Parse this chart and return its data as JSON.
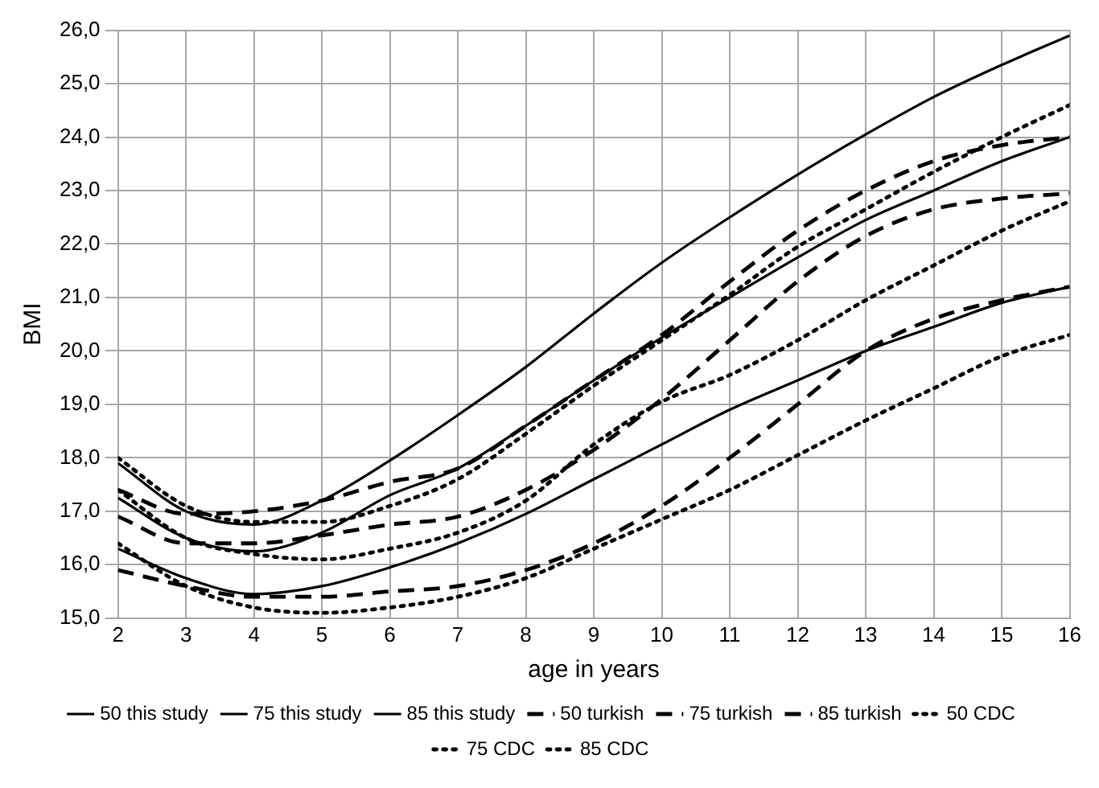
{
  "chart_data": {
    "type": "line",
    "xlabel": "age in years",
    "ylabel": "BMI",
    "x": [
      2,
      3,
      4,
      5,
      6,
      7,
      8,
      9,
      10,
      11,
      12,
      13,
      14,
      15,
      16
    ],
    "xlim": [
      2,
      16
    ],
    "xticks": [
      2,
      3,
      4,
      5,
      6,
      7,
      8,
      9,
      10,
      11,
      12,
      13,
      14,
      15,
      16
    ],
    "ylim": [
      15,
      26
    ],
    "yticks": [
      {
        "value": 15,
        "label": "15,0"
      },
      {
        "value": 16,
        "label": "16,0"
      },
      {
        "value": 17,
        "label": "17,0"
      },
      {
        "value": 18,
        "label": "18,0"
      },
      {
        "value": 19,
        "label": "19,0"
      },
      {
        "value": 20,
        "label": "20,0"
      },
      {
        "value": 21,
        "label": "21,0"
      },
      {
        "value": 22,
        "label": "22,0"
      },
      {
        "value": 23,
        "label": "23,0"
      },
      {
        "value": 24,
        "label": "24,0"
      },
      {
        "value": 25,
        "label": "25,0"
      },
      {
        "value": 26,
        "label": "26,0"
      }
    ],
    "grid": true,
    "legend": "bottom",
    "marker": "none",
    "series": [
      {
        "name": "50 this study",
        "color": "#000000",
        "line_style": "solid",
        "values": [
          16.3,
          15.75,
          15.45,
          15.6,
          15.95,
          16.4,
          16.95,
          17.6,
          18.25,
          18.9,
          19.45,
          20.0,
          20.45,
          20.9,
          21.2
        ]
      },
      {
        "name": "75 this study",
        "color": "#000000",
        "line_style": "solid",
        "values": [
          17.25,
          16.5,
          16.25,
          16.6,
          17.3,
          17.8,
          18.6,
          19.45,
          20.25,
          21.0,
          21.75,
          22.45,
          23.0,
          23.55,
          24.0
        ]
      },
      {
        "name": "85 this study",
        "color": "#000000",
        "line_style": "solid",
        "values": [
          17.9,
          17.0,
          16.75,
          17.2,
          17.95,
          18.8,
          19.7,
          20.7,
          21.65,
          22.5,
          23.3,
          24.05,
          24.75,
          25.35,
          25.9
        ]
      },
      {
        "name": "50 turkish",
        "color": "#000000",
        "line_style": "dashed",
        "values": [
          15.9,
          15.6,
          15.4,
          15.4,
          15.5,
          15.6,
          15.9,
          16.4,
          17.1,
          18.0,
          19.0,
          20.0,
          20.6,
          20.95,
          21.2
        ]
      },
      {
        "name": "75 turkish",
        "color": "#000000",
        "line_style": "dashed",
        "values": [
          16.9,
          16.4,
          16.4,
          16.55,
          16.75,
          16.9,
          17.4,
          18.15,
          19.1,
          20.2,
          21.3,
          22.15,
          22.65,
          22.85,
          22.95
        ]
      },
      {
        "name": "85 turkish",
        "color": "#000000",
        "line_style": "dashed",
        "values": [
          17.4,
          16.95,
          17.0,
          17.2,
          17.55,
          17.8,
          18.6,
          19.45,
          20.3,
          21.3,
          22.25,
          23.0,
          23.55,
          23.85,
          24.0
        ]
      },
      {
        "name": "50 CDC",
        "color": "#000000",
        "line_style": "dotted",
        "values": [
          16.4,
          15.6,
          15.2,
          15.1,
          15.2,
          15.4,
          15.75,
          16.3,
          16.85,
          17.4,
          18.05,
          18.7,
          19.3,
          19.9,
          20.3
        ]
      },
      {
        "name": "75 CDC",
        "color": "#000000",
        "line_style": "dotted",
        "values": [
          17.4,
          16.5,
          16.2,
          16.1,
          16.3,
          16.6,
          17.2,
          18.25,
          19.05,
          19.55,
          20.2,
          20.95,
          21.6,
          22.25,
          22.8
        ]
      },
      {
        "name": "85 CDC",
        "color": "#000000",
        "line_style": "dotted",
        "values": [
          18.0,
          17.1,
          16.8,
          16.8,
          17.1,
          17.6,
          18.45,
          19.35,
          20.2,
          21.05,
          21.95,
          22.65,
          23.35,
          24.0,
          24.6
        ]
      }
    ]
  }
}
